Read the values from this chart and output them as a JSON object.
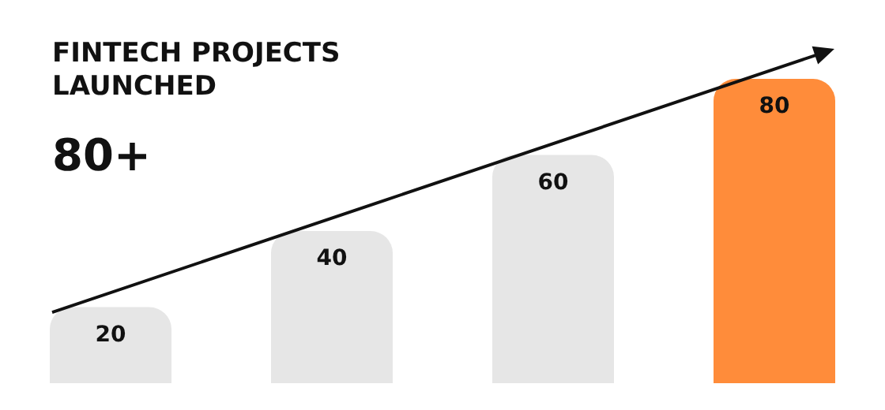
{
  "chart_data": {
    "type": "bar",
    "title": "FINTECH PROJECTS\nLAUNCHED",
    "subtitle": "80+",
    "categories": [
      null,
      null,
      null,
      null
    ],
    "values": [
      20,
      40,
      60,
      80
    ],
    "colors": [
      "#e6e6e6",
      "#e6e6e6",
      "#e6e6e6",
      "#ff8c3a"
    ],
    "data_labels": true
  }
}
